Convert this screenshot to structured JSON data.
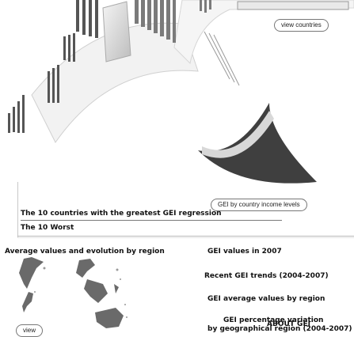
{
  "top": {
    "view_countries_label": "view countries",
    "gei_income_label": "GEI by country income levels"
  },
  "rankings": {
    "best_label": "The 10 countries with the greatest GEI regression",
    "worst_label": "The 10 Worst"
  },
  "regions": {
    "title": "Average values and evolution by region",
    "view_label": "view"
  },
  "gei": {
    "values_2007_label": "GEI values in 2007",
    "recent_trends_label": "Recent GEI trends (2004-2007)",
    "avg_by_region_label": "GEI average values by region",
    "pct_variation_line1": "GEI percentage variation",
    "pct_variation_line2": "by geographical region (2004-2007)",
    "about_label": "ABOUT GEI"
  },
  "colors": {
    "art_gray": "#6e6e6e",
    "map_gray": "#6a6a6a",
    "rule": "#7a7a7a"
  }
}
